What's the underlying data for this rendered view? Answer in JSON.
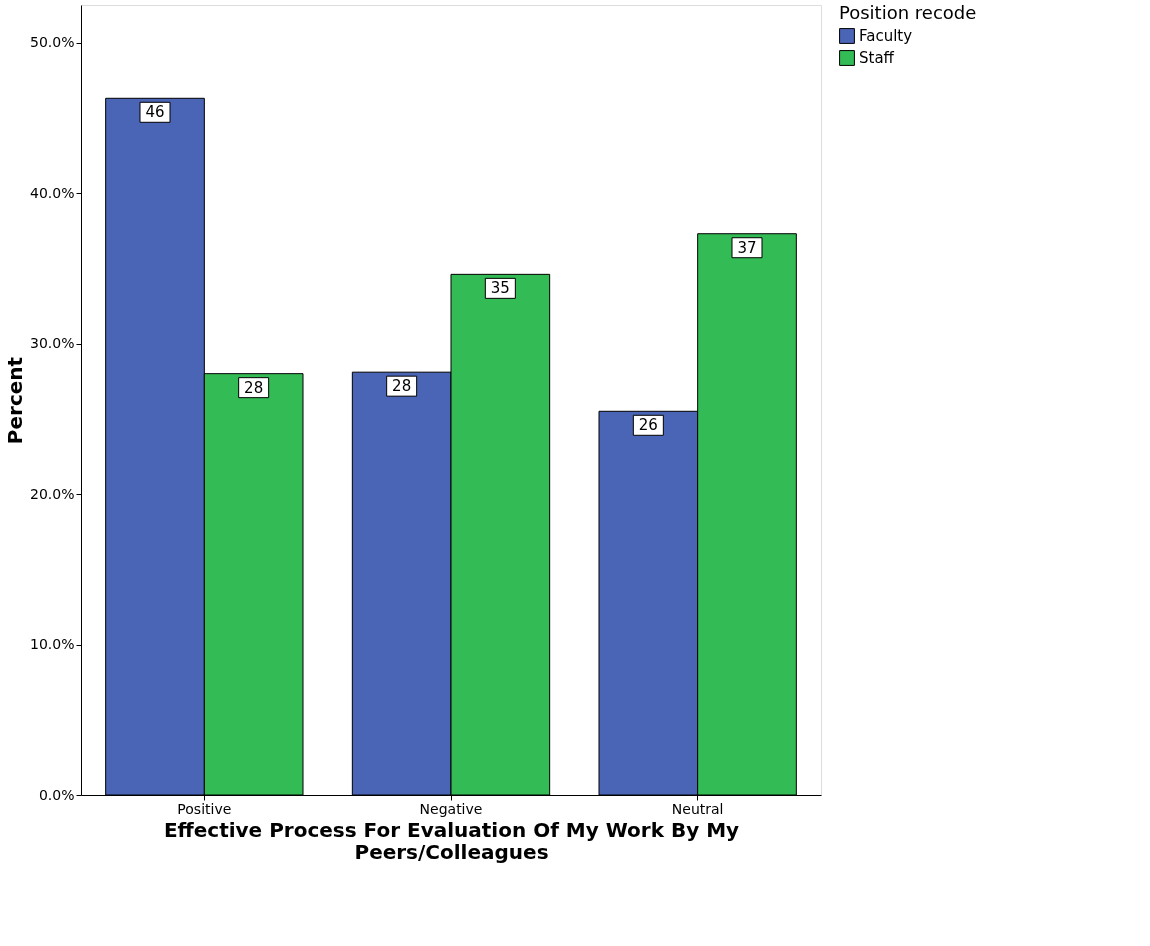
{
  "chart_data": {
    "type": "bar",
    "xlabel": "Effective Process For Evaluation Of My Work By My Peers/Colleagues",
    "ylabel": "Percent",
    "legend_title": "Position recode",
    "categories": [
      "Positive",
      "Negative",
      "Neutral"
    ],
    "series": [
      {
        "name": "Faculty",
        "color": "#4a65b5",
        "values": [
          46.3,
          28.1,
          25.5
        ],
        "value_labels": [
          "46",
          "28",
          "26"
        ]
      },
      {
        "name": "Staff",
        "color": "#33bc55",
        "values": [
          28.0,
          34.6,
          37.3
        ],
        "value_labels": [
          "28",
          "35",
          "37"
        ]
      }
    ],
    "ylim": [
      0,
      52.5
    ],
    "yticks": [
      {
        "value": 0,
        "label": "0.0%"
      },
      {
        "value": 10,
        "label": "10.0%"
      },
      {
        "value": 20,
        "label": "20.0%"
      },
      {
        "value": 30,
        "label": "30.0%"
      },
      {
        "value": 40,
        "label": "40.0%"
      },
      {
        "value": 50,
        "label": "50.0%"
      }
    ],
    "grid": false,
    "legend": "top right"
  }
}
